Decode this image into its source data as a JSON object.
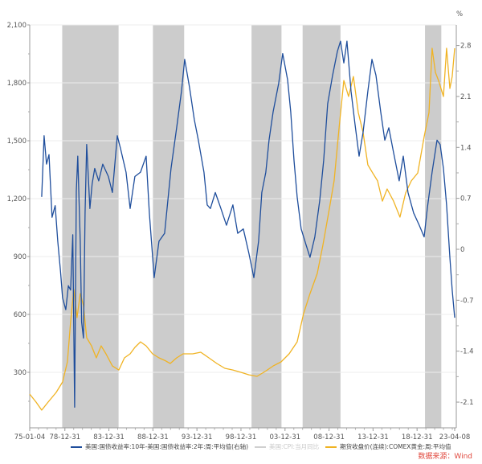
{
  "chart_data": {
    "type": "line",
    "title": "",
    "left_axis": {
      "ticks": [
        "300",
        "600",
        "900",
        "1,200",
        "1,500",
        "1,800",
        "2,100"
      ],
      "tick_values": [
        300,
        600,
        900,
        1200,
        1500,
        1800,
        2100
      ],
      "ylim": [
        0,
        2100
      ]
    },
    "right_axis": {
      "unit": "%",
      "ticks": [
        "-2.1",
        "-1.4",
        "-0.7",
        "0",
        "0.7",
        "1.4",
        "2.1",
        "2.8"
      ],
      "tick_values": [
        -2.1,
        -1.4,
        -0.7,
        0,
        0.7,
        1.4,
        2.1,
        2.8
      ],
      "ylim": [
        -2.35,
        3.15
      ]
    },
    "x_axis": {
      "range": [
        1975.01,
        2023.27
      ],
      "tick_labels": [
        "75-01-04",
        "78-12-31",
        "83-12-31",
        "88-12-31",
        "93-12-31",
        "98-12-31",
        "03-12-31",
        "08-12-31",
        "13-12-31",
        "18-12-31",
        "23-04-08"
      ],
      "tick_values": [
        1975.01,
        1979.0,
        1984.0,
        1989.0,
        1994.0,
        1999.0,
        2004.0,
        2009.0,
        2014.0,
        2019.0,
        2023.27
      ]
    },
    "recession_shading": [
      [
        1978.7,
        1985.1
      ],
      [
        1989.0,
        1992.55
      ],
      [
        2000.2,
        2003.6
      ],
      [
        2006.0,
        2010.3
      ],
      [
        2019.9,
        2021.75
      ]
    ],
    "series": [
      {
        "name": "美国:国债收益率:10年-美国:国债收益率:2年:周:平均值(右轴)",
        "axis": "right",
        "color": "#1f4e9c",
        "points": [
          [
            1976.37,
            0.72
          ],
          [
            1976.64,
            1.56
          ],
          [
            1976.92,
            1.17
          ],
          [
            1977.2,
            1.3
          ],
          [
            1977.55,
            0.44
          ],
          [
            1977.9,
            0.6
          ],
          [
            1978.19,
            0.11
          ],
          [
            1978.5,
            -0.3
          ],
          [
            1978.74,
            -0.67
          ],
          [
            1979.11,
            -0.83
          ],
          [
            1979.4,
            -0.5
          ],
          [
            1979.65,
            -0.56
          ],
          [
            1979.9,
            0.2
          ],
          [
            1980.11,
            -2.17
          ],
          [
            1980.3,
            0.8
          ],
          [
            1980.47,
            1.28
          ],
          [
            1980.75,
            0.11
          ],
          [
            1980.9,
            -1.0
          ],
          [
            1981.11,
            -1.22
          ],
          [
            1981.3,
            0.5
          ],
          [
            1981.48,
            1.44
          ],
          [
            1981.84,
            0.56
          ],
          [
            1982.1,
            0.9
          ],
          [
            1982.39,
            1.11
          ],
          [
            1982.85,
            0.94
          ],
          [
            1983.3,
            1.17
          ],
          [
            1983.94,
            1.0
          ],
          [
            1984.4,
            0.78
          ],
          [
            1984.95,
            1.56
          ],
          [
            1985.31,
            1.39
          ],
          [
            1985.95,
            1.06
          ],
          [
            1986.41,
            0.56
          ],
          [
            1986.95,
            1.0
          ],
          [
            1987.59,
            1.06
          ],
          [
            1988.23,
            1.28
          ],
          [
            1988.59,
            0.5
          ],
          [
            1989.14,
            -0.39
          ],
          [
            1989.69,
            0.11
          ],
          [
            1990.33,
            0.22
          ],
          [
            1991.06,
            1.11
          ],
          [
            1991.7,
            1.67
          ],
          [
            1992.24,
            2.17
          ],
          [
            1992.61,
            2.61
          ],
          [
            1993.16,
            2.22
          ],
          [
            1993.7,
            1.78
          ],
          [
            1994.16,
            1.5
          ],
          [
            1994.8,
            1.06
          ],
          [
            1995.16,
            0.61
          ],
          [
            1995.53,
            0.56
          ],
          [
            1996.08,
            0.78
          ],
          [
            1996.72,
            0.56
          ],
          [
            1997.35,
            0.33
          ],
          [
            1998.08,
            0.61
          ],
          [
            1998.63,
            0.22
          ],
          [
            1999.27,
            0.28
          ],
          [
            1999.91,
            -0.06
          ],
          [
            2000.46,
            -0.39
          ],
          [
            2001.0,
            0.11
          ],
          [
            2001.37,
            0.78
          ],
          [
            2001.82,
            1.06
          ],
          [
            2002.19,
            1.5
          ],
          [
            2002.65,
            1.89
          ],
          [
            2003.28,
            2.28
          ],
          [
            2003.74,
            2.69
          ],
          [
            2004.29,
            2.33
          ],
          [
            2004.65,
            1.89
          ],
          [
            2005.02,
            1.22
          ],
          [
            2005.38,
            0.72
          ],
          [
            2005.84,
            0.28
          ],
          [
            2006.39,
            0.06
          ],
          [
            2006.84,
            -0.11
          ],
          [
            2007.39,
            0.17
          ],
          [
            2007.94,
            0.67
          ],
          [
            2008.39,
            1.22
          ],
          [
            2008.85,
            2.0
          ],
          [
            2009.4,
            2.39
          ],
          [
            2009.95,
            2.72
          ],
          [
            2010.31,
            2.86
          ],
          [
            2010.68,
            2.56
          ],
          [
            2011.04,
            2.86
          ],
          [
            2011.5,
            2.17
          ],
          [
            2011.95,
            1.72
          ],
          [
            2012.41,
            1.28
          ],
          [
            2012.87,
            1.61
          ],
          [
            2013.41,
            2.17
          ],
          [
            2013.87,
            2.61
          ],
          [
            2014.33,
            2.39
          ],
          [
            2014.87,
            1.89
          ],
          [
            2015.33,
            1.5
          ],
          [
            2015.79,
            1.67
          ],
          [
            2016.33,
            1.33
          ],
          [
            2016.97,
            0.94
          ],
          [
            2017.43,
            1.28
          ],
          [
            2017.97,
            0.78
          ],
          [
            2018.61,
            0.5
          ],
          [
            2019.25,
            0.33
          ],
          [
            2019.8,
            0.17
          ],
          [
            2020.16,
            0.56
          ],
          [
            2020.71,
            1.06
          ],
          [
            2021.26,
            1.5
          ],
          [
            2021.62,
            1.44
          ],
          [
            2021.99,
            1.11
          ],
          [
            2022.35,
            0.61
          ],
          [
            2022.72,
            -0.11
          ],
          [
            2022.99,
            -0.56
          ],
          [
            2023.27,
            -0.94
          ]
        ]
      },
      {
        "name": "美国:CPI:当月同比",
        "axis": "left",
        "color": "#c8c8c8",
        "points": []
      },
      {
        "name": "期货收盘价(连续):COMEX黄金:周:平均值",
        "axis": "left",
        "color": "#f0b323",
        "points": [
          [
            1975.01,
            187
          ],
          [
            1975.73,
            146
          ],
          [
            1976.37,
            104
          ],
          [
            1977.1,
            146
          ],
          [
            1978.01,
            196
          ],
          [
            1978.74,
            250
          ],
          [
            1979.29,
            354
          ],
          [
            1979.65,
            562
          ],
          [
            1980.02,
            729
          ],
          [
            1980.38,
            583
          ],
          [
            1980.75,
            708
          ],
          [
            1981.11,
            646
          ],
          [
            1981.48,
            479
          ],
          [
            1982.03,
            437
          ],
          [
            1982.57,
            375
          ],
          [
            1983.12,
            437
          ],
          [
            1983.67,
            396
          ],
          [
            1984.4,
            333
          ],
          [
            1985.13,
            312
          ],
          [
            1985.77,
            375
          ],
          [
            1986.41,
            396
          ],
          [
            1986.95,
            429
          ],
          [
            1987.59,
            458
          ],
          [
            1988.23,
            437
          ],
          [
            1988.96,
            396
          ],
          [
            1989.69,
            375
          ],
          [
            1990.33,
            362
          ],
          [
            1990.97,
            346
          ],
          [
            1991.7,
            375
          ],
          [
            1992.43,
            396
          ],
          [
            1993.52,
            396
          ],
          [
            1994.43,
            404
          ],
          [
            1995.35,
            375
          ],
          [
            1996.26,
            346
          ],
          [
            1997.17,
            321
          ],
          [
            1998.08,
            312
          ],
          [
            1998.99,
            300
          ],
          [
            1999.91,
            287
          ],
          [
            2000.82,
            279
          ],
          [
            2001.73,
            304
          ],
          [
            2002.65,
            333
          ],
          [
            2003.56,
            354
          ],
          [
            2004.47,
            396
          ],
          [
            2005.38,
            458
          ],
          [
            2006.11,
            604
          ],
          [
            2006.84,
            708
          ],
          [
            2007.66,
            812
          ],
          [
            2008.3,
            958
          ],
          [
            2009.03,
            1146
          ],
          [
            2009.58,
            1292
          ],
          [
            2010.13,
            1562
          ],
          [
            2010.68,
            1812
          ],
          [
            2011.22,
            1729
          ],
          [
            2011.77,
            1833
          ],
          [
            2012.32,
            1646
          ],
          [
            2012.87,
            1542
          ],
          [
            2013.41,
            1375
          ],
          [
            2013.96,
            1333
          ],
          [
            2014.51,
            1292
          ],
          [
            2015.06,
            1187
          ],
          [
            2015.6,
            1250
          ],
          [
            2016.33,
            1187
          ],
          [
            2017.06,
            1104
          ],
          [
            2017.7,
            1229
          ],
          [
            2018.34,
            1292
          ],
          [
            2019.07,
            1333
          ],
          [
            2019.8,
            1521
          ],
          [
            2020.35,
            1646
          ],
          [
            2020.71,
            1979
          ],
          [
            2021.08,
            1854
          ],
          [
            2021.44,
            1812
          ],
          [
            2021.99,
            1729
          ],
          [
            2022.35,
            1979
          ],
          [
            2022.72,
            1771
          ],
          [
            2022.99,
            1833
          ],
          [
            2023.27,
            1979
          ]
        ]
      }
    ],
    "legend_position": "bottom",
    "source": "数据来源：Wind"
  }
}
